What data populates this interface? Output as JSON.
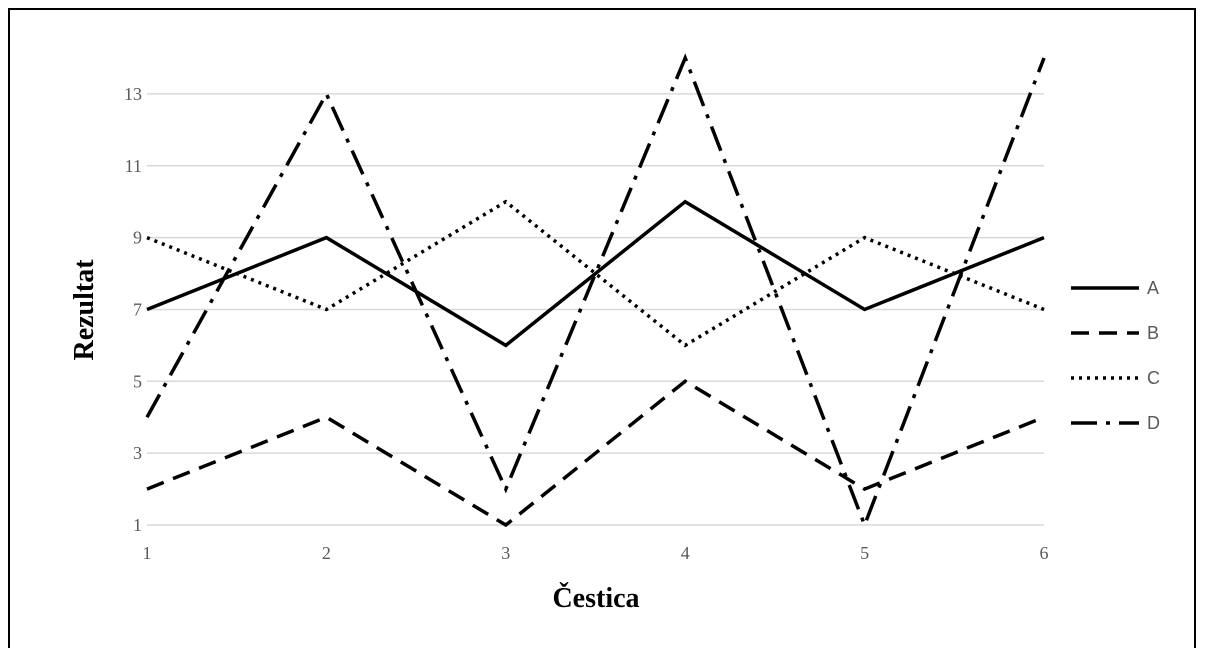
{
  "chart_data": {
    "type": "line",
    "title": "",
    "xlabel": "Čestica",
    "ylabel": "Rezultat",
    "x": [
      1,
      2,
      3,
      4,
      5,
      6
    ],
    "xticks": [
      "1",
      "2",
      "3",
      "4",
      "5",
      "6"
    ],
    "ylim": [
      1,
      14
    ],
    "yticks": [
      "1",
      "3",
      "5",
      "7",
      "9",
      "11",
      "13"
    ],
    "grid": true,
    "legend_position": "right",
    "series": [
      {
        "name": "A",
        "values": [
          7,
          9,
          6,
          10,
          7,
          9
        ],
        "color": "#000000",
        "dash": "solid"
      },
      {
        "name": "B",
        "values": [
          2,
          4,
          1,
          5,
          2,
          4
        ],
        "color": "#000000",
        "dash": "dash"
      },
      {
        "name": "C",
        "values": [
          9,
          7,
          10,
          6,
          9,
          7
        ],
        "color": "#000000",
        "dash": "dot"
      },
      {
        "name": "D",
        "values": [
          4,
          13,
          2,
          14,
          1,
          14
        ],
        "color": "#000000",
        "dash": "longdash-dot"
      }
    ]
  }
}
